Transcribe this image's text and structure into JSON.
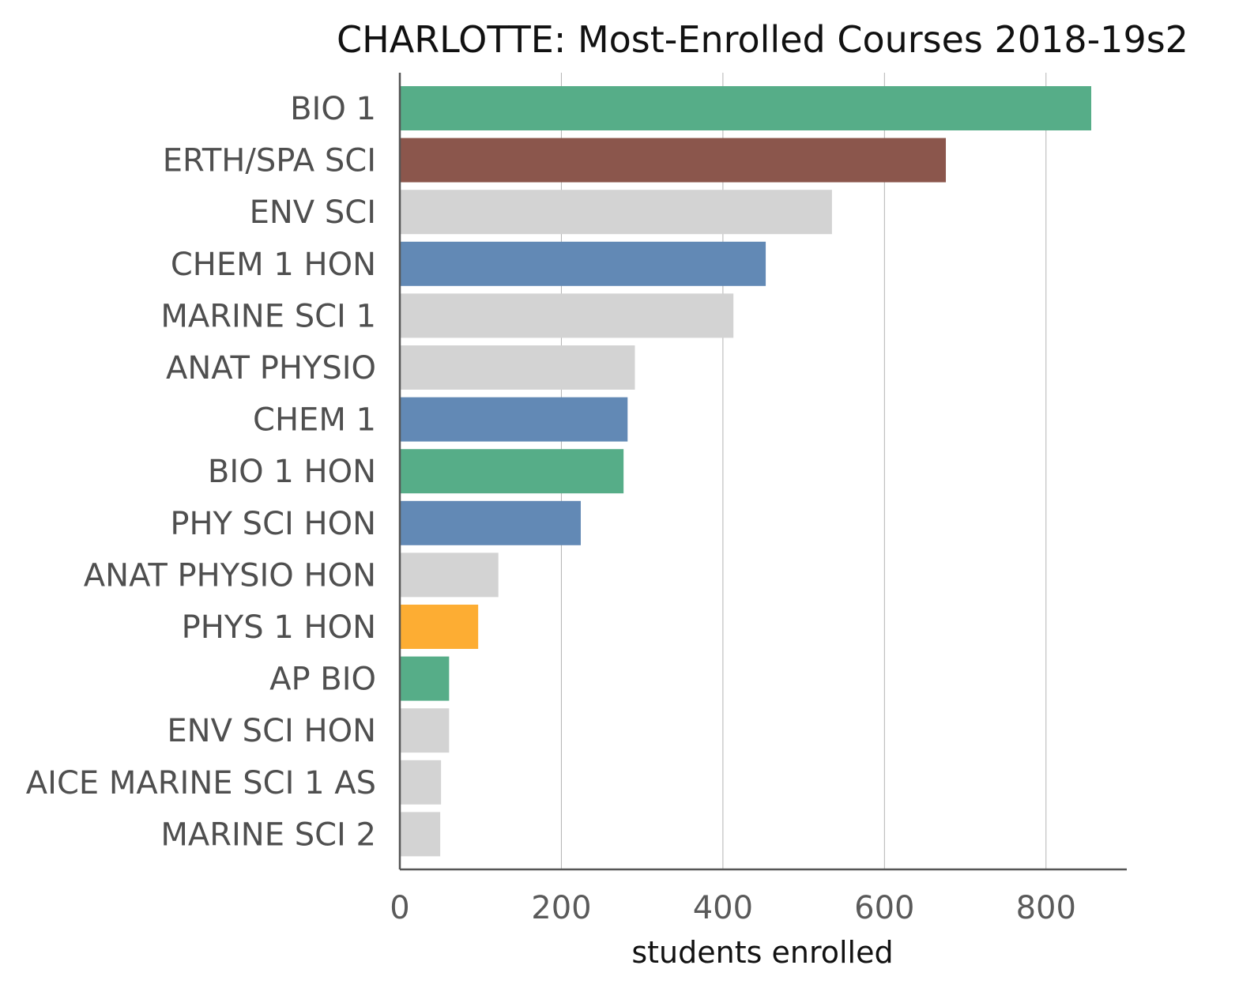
{
  "chart_data": {
    "type": "bar",
    "orientation": "horizontal",
    "title": "CHARLOTTE: Most-Enrolled Courses 2018-19s2",
    "xlabel": "students enrolled",
    "ylabel": "",
    "xlim": [
      0,
      900
    ],
    "xticks": [
      0,
      200,
      400,
      600,
      800
    ],
    "grid": "vertical",
    "categories": [
      "BIO 1",
      "ERTH/SPA SCI",
      "ENV SCI",
      "CHEM 1 HON",
      "MARINE SCI 1",
      "ANAT PHYSIO",
      "CHEM 1",
      "BIO 1 HON",
      "PHY SCI HON",
      "ANAT PHYSIO HON",
      "PHYS 1 HON",
      "AP BIO",
      "ENV SCI HON",
      "AICE MARINE SCI 1 AS",
      "MARINE SCI 2"
    ],
    "values": [
      856,
      676,
      535,
      453,
      413,
      291,
      282,
      277,
      224,
      122,
      97,
      61,
      61,
      51,
      50
    ],
    "colors": [
      "#56ad88",
      "#8b564c",
      "#d3d3d3",
      "#6289b5",
      "#d3d3d3",
      "#d3d3d3",
      "#6289b5",
      "#56ad88",
      "#6289b5",
      "#d3d3d3",
      "#fdad33",
      "#56ad88",
      "#d3d3d3",
      "#d3d3d3",
      "#d3d3d3"
    ]
  }
}
